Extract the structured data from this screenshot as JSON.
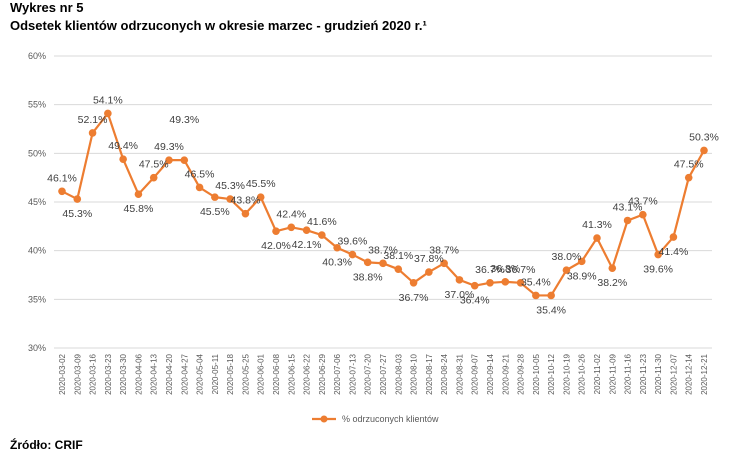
{
  "figure": {
    "label": "Wykres nr 5",
    "title": "Odsetek klientów odrzuconych w okresie marzec - grudzień 2020 r.¹",
    "source": "Źródło: CRIF"
  },
  "colors": {
    "series": "#ED7D31",
    "grid": "#D9D9D9",
    "text": "#595959"
  },
  "chart_data": {
    "type": "line",
    "ylim": [
      30,
      60
    ],
    "yticks": [
      "30%",
      "35%",
      "40%",
      "45%",
      "50%",
      "55%",
      "60%"
    ],
    "grid": true,
    "legend_position": "bottom",
    "series": [
      {
        "name": "% odrzuconych klientów",
        "x": [
          "2020-03-02",
          "2020-03-09",
          "2020-03-16",
          "2020-03-23",
          "2020-03-30",
          "2020-04-06",
          "2020-04-13",
          "2020-04-20",
          "2020-04-27",
          "2020-05-04",
          "2020-05-11",
          "2020-05-18",
          "2020-05-25",
          "2020-06-01",
          "2020-06-08",
          "2020-06-15",
          "2020-06-22",
          "2020-06-29",
          "2020-07-06",
          "2020-07-13",
          "2020-07-20",
          "2020-07-27",
          "2020-08-03",
          "2020-08-10",
          "2020-08-17",
          "2020-08-24",
          "2020-08-31",
          "2020-09-07",
          "2020-09-14",
          "2020-09-21",
          "2020-09-28",
          "2020-10-05",
          "2020-10-12",
          "2020-10-19",
          "2020-10-26",
          "2020-11-02",
          "2020-11-09",
          "2020-11-16",
          "2020-11-23",
          "2020-11-30",
          "2020-12-07",
          "2020-12-14",
          "2020-12-21"
        ],
        "values": [
          46.1,
          45.3,
          52.1,
          54.1,
          49.4,
          45.8,
          47.5,
          49.3,
          49.3,
          46.5,
          45.5,
          45.3,
          43.8,
          45.5,
          42.0,
          42.4,
          42.1,
          41.6,
          40.3,
          39.6,
          38.8,
          38.7,
          38.1,
          36.7,
          37.8,
          38.7,
          37.0,
          36.4,
          36.7,
          36.8,
          36.7,
          35.4,
          35.4,
          38.0,
          38.9,
          41.3,
          38.2,
          43.1,
          43.7,
          39.6,
          41.4,
          47.5,
          50.3
        ],
        "labels": [
          "46.1%",
          "45.3%",
          "52.1%",
          "54.1%",
          "49.4%",
          "45.8%",
          "47.5%",
          "49.3%",
          "49.3%",
          "46.5%",
          "45.5%",
          "45.3%",
          "43.8%",
          "45.5%",
          "42.0%",
          "42.4%",
          "42.1%",
          "41.6%",
          "40.3%",
          "39.6%",
          "38.8%",
          "38.7%",
          "38.1%",
          "36.7%",
          "37.8%",
          "38.7%",
          "37.0%",
          "36.4%",
          "36.7%",
          "36.8%",
          "36.7%",
          "35.4%",
          "35.4%",
          "38.0%",
          "38.9%",
          "41.3%",
          "38.2%",
          "43.1%",
          "43.7%",
          "39.6%",
          "41.4%",
          "47.5%",
          "50.3%"
        ]
      }
    ]
  }
}
